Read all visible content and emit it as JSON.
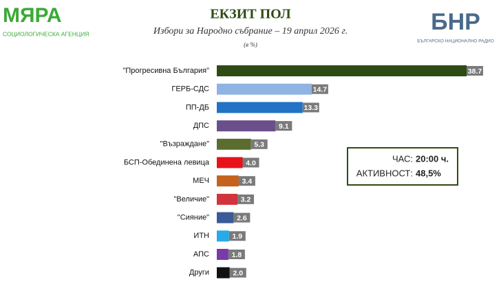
{
  "chart_data": {
    "type": "bar",
    "orientation": "horizontal",
    "title": "ЕКЗИТ ПОЛ",
    "subtitle": "Избори за Народно събрание – 19 април 2026 г.",
    "unit_note": "(в %)",
    "logo_left": {
      "name": "МЯРА",
      "tagline": "СОЦИОЛОГИЧЕСКА АГЕНЦИЯ"
    },
    "logo_right": {
      "name": "БНР",
      "tagline": "БЪЛГАРСКО НАЦИОНАЛНО РАДИО"
    },
    "categories": [
      "\"Прогресивна България\"",
      "ГЕРБ-СДС",
      "ПП-ДБ",
      "ДПС",
      "\"Възраждане\"",
      "БСП-Обединена левица",
      "МЕЧ",
      "\"Величие\"",
      "\"Сияние\"",
      "ИТН",
      "АПС",
      "Други"
    ],
    "values": [
      38.7,
      14.7,
      13.3,
      9.1,
      5.3,
      4.0,
      3.4,
      3.2,
      2.6,
      1.9,
      1.8,
      2.0
    ],
    "value_labels": [
      "38.7",
      "14.7",
      "13.3",
      "9.1",
      "5.3",
      "4.0",
      "3.4",
      "3.2",
      "2.6",
      "1.9",
      "1.8",
      "2.0"
    ],
    "colors": [
      "#2e4b15",
      "#8fb3e2",
      "#2173c6",
      "#6a4f8c",
      "#5a6d2f",
      "#e8111b",
      "#c4621e",
      "#d1343a",
      "#3a5a98",
      "#28a9e8",
      "#7a3aa8",
      "#111111"
    ],
    "annotations": [
      {
        "label": "ЧАС:",
        "value": "20:00 ч."
      },
      {
        "label": "АКТИВНОСТ:",
        "value": "48,5%"
      }
    ]
  }
}
